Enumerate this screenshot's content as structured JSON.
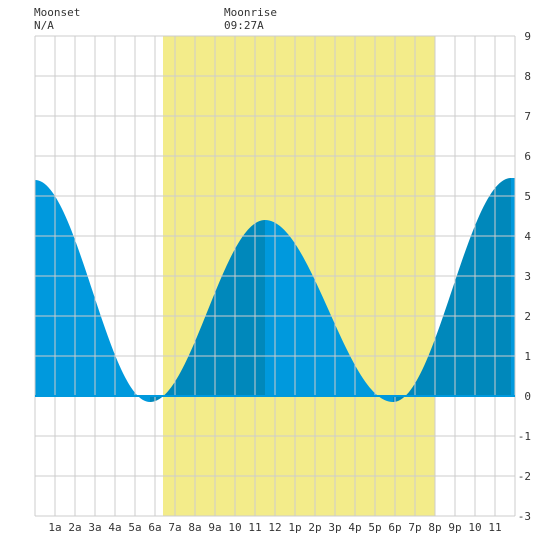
{
  "header": {
    "moonset_label": "Moonset",
    "moonset_time": "N/A",
    "moonrise_label": "Moonrise",
    "moonrise_time": "09:27A"
  },
  "chart_data": {
    "type": "area",
    "x_unit": "hours after midnight",
    "x_range": [
      0,
      24
    ],
    "ylim": [
      -3,
      9
    ],
    "grid": true,
    "x_tick_labels": [
      "1a",
      "2a",
      "3a",
      "4a",
      "5a",
      "6a",
      "7a",
      "8a",
      "9a",
      "10",
      "11",
      "12",
      "1p",
      "2p",
      "3p",
      "4p",
      "5p",
      "6p",
      "7p",
      "8p",
      "9p",
      "10",
      "11"
    ],
    "y_tick_labels": [
      "-3",
      "-2",
      "-1",
      "0",
      "1",
      "2",
      "3",
      "4",
      "5",
      "6",
      "7",
      "8",
      "9"
    ],
    "daylight_span": [
      6.4,
      20.0
    ],
    "extremes": [
      {
        "time": 0.0,
        "height": 5.4,
        "type": "high"
      },
      {
        "time": 5.75,
        "height": -0.15,
        "type": "low"
      },
      {
        "time": 11.5,
        "height": 4.4,
        "type": "high"
      },
      {
        "time": 17.9,
        "height": -0.15,
        "type": "low"
      },
      {
        "time": 23.8,
        "height": 5.45,
        "type": "high"
      }
    ],
    "colors": {
      "falling": "#0099dd",
      "rising": "#0088bb",
      "daylight": "#f3ec8a",
      "grid": "#cccccc",
      "zero_line": "#0099dd"
    }
  }
}
